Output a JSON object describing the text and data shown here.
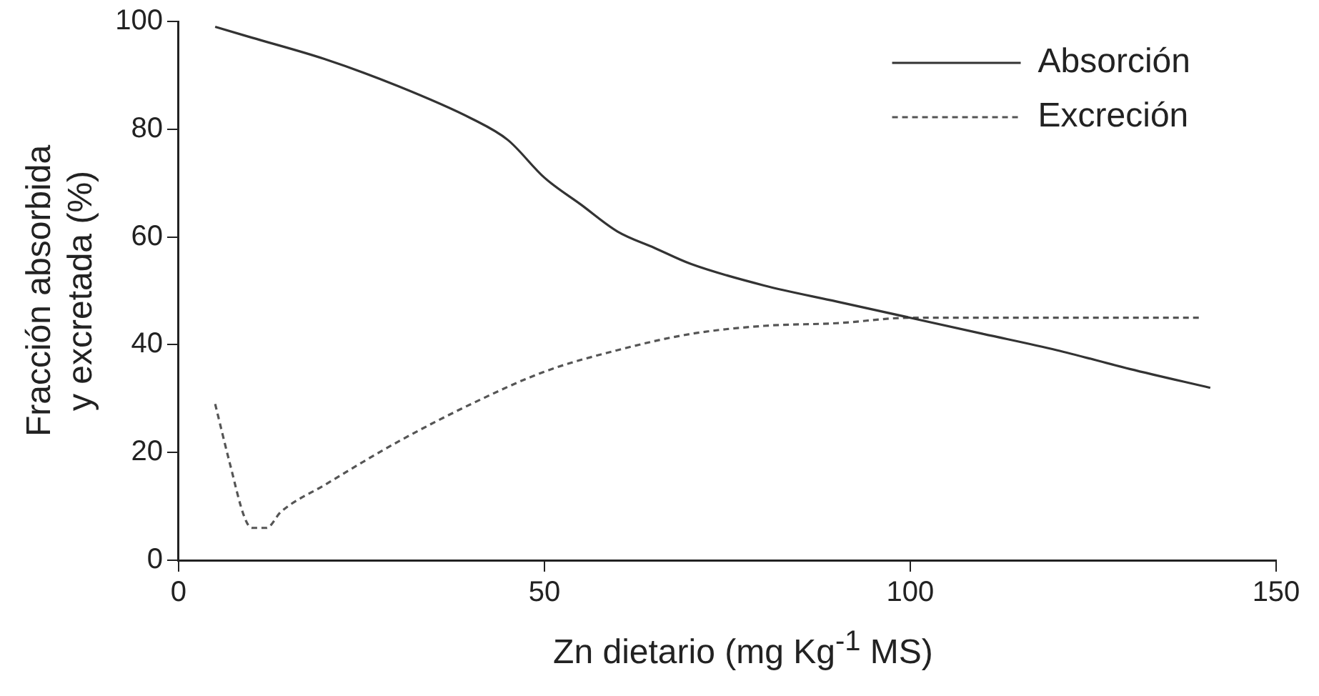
{
  "chart_data": {
    "type": "line",
    "xlabel": "Zn dietario (mg Kg$^{-1}$ MS)",
    "ylabel": "Fracción absorbida\ny excretada (%)",
    "xlim": [
      0,
      150
    ],
    "xticks": [
      0,
      50,
      100,
      150
    ],
    "ylim": [
      0,
      100
    ],
    "yticks": [
      0,
      20,
      40,
      60,
      80,
      100
    ],
    "grid": false,
    "legend": "top right",
    "marker": "none",
    "series": [
      {
        "name": "Absorción",
        "color": "#333333",
        "line_style": "solid",
        "x": [
          5,
          10,
          20,
          30,
          40,
          45,
          50,
          55,
          60,
          65,
          70,
          80,
          90,
          100,
          110,
          120,
          130,
          141
        ],
        "values": [
          99,
          97,
          93,
          88,
          82,
          78,
          71,
          66,
          61,
          58,
          55,
          51,
          48,
          45,
          42,
          39,
          35.5,
          32
        ]
      },
      {
        "name": "Excreción",
        "color": "#555555",
        "line_style": "dashed",
        "x": [
          5,
          7,
          9,
          10,
          12,
          14,
          20,
          30,
          40,
          50,
          60,
          70,
          80,
          90,
          100,
          120,
          140
        ],
        "values": [
          29,
          18,
          8,
          6,
          6,
          9,
          14,
          22,
          29,
          35,
          39,
          42,
          43.5,
          44,
          45,
          45,
          45
        ]
      }
    ]
  }
}
